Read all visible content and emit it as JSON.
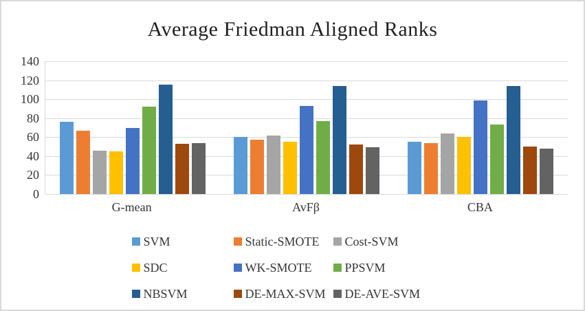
{
  "figure": {
    "background": "#ffffff",
    "border_color": "#d9d9d9",
    "gridline_color": "#d9d9d9"
  },
  "chart_data": {
    "type": "bar",
    "title": "Average Friedman Aligned Ranks",
    "xlabel": "",
    "ylabel": "",
    "categories": [
      "G-mean",
      "AvFβ",
      "CBA"
    ],
    "series": [
      {
        "name": "SVM",
        "color": "#5B9BD5",
        "values": [
          76,
          60,
          55
        ]
      },
      {
        "name": "Static-SMOTE",
        "color": "#ED7D31",
        "values": [
          67,
          57,
          54
        ]
      },
      {
        "name": "Cost-SVM",
        "color": "#A5A5A5",
        "values": [
          46,
          62,
          64
        ]
      },
      {
        "name": "SDC",
        "color": "#FFC000",
        "values": [
          45,
          55,
          60
        ]
      },
      {
        "name": "WK-SMOTE",
        "color": "#4472C4",
        "values": [
          70,
          93,
          99
        ]
      },
      {
        "name": "PPSVM",
        "color": "#70AD47",
        "values": [
          92,
          77,
          73
        ]
      },
      {
        "name": "NBSVM",
        "color": "#255E91",
        "values": [
          115,
          114,
          114
        ]
      },
      {
        "name": "DE-MAX-SVM",
        "color": "#9E480E",
        "values": [
          53,
          52,
          50
        ]
      },
      {
        "name": "DE-AVE-SVM",
        "color": "#636363",
        "values": [
          54,
          49,
          48
        ]
      }
    ],
    "ylim": [
      0,
      140
    ],
    "ytick_step": 20,
    "ytick_labels": [
      "0",
      "20",
      "40",
      "60",
      "80",
      "100",
      "120",
      "140"
    ],
    "grid": true,
    "legend_position": "bottom",
    "legend_columns": 3,
    "legend_rows": 3
  }
}
